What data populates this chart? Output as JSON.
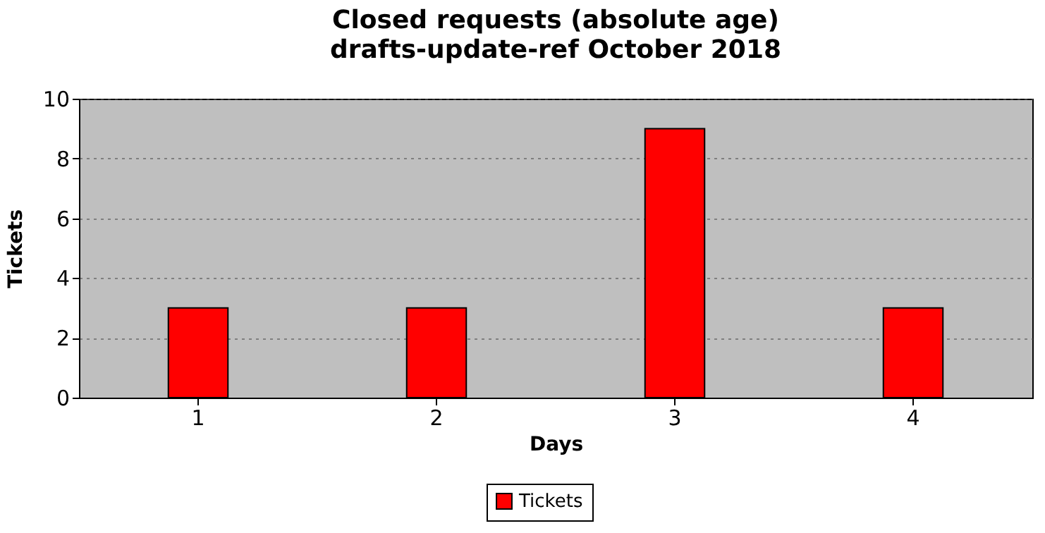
{
  "chart_data": {
    "type": "bar",
    "title": "Closed requests (absolute age)",
    "subtitle": "drafts-update-ref October 2018",
    "xlabel": "Days",
    "ylabel": "Tickets",
    "categories": [
      "1",
      "2",
      "3",
      "4"
    ],
    "series": [
      {
        "name": "Tickets",
        "color": "#ff0000",
        "values": [
          3,
          3,
          9,
          3
        ]
      }
    ],
    "ylim": [
      0,
      10
    ],
    "yticks": [
      0,
      2,
      4,
      6,
      8,
      10
    ],
    "grid": "y",
    "legend": "bottom"
  }
}
